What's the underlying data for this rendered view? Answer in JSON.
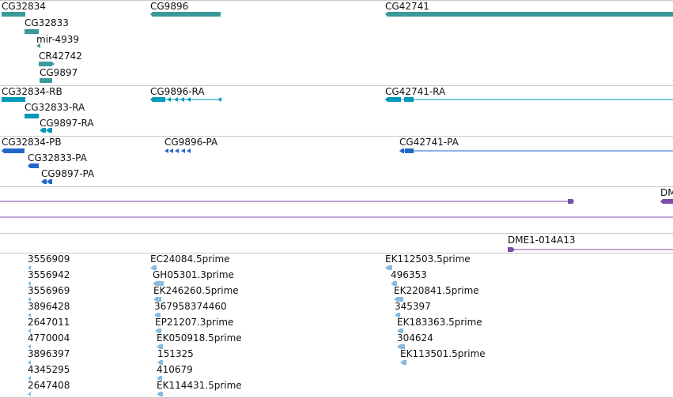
{
  "colors": {
    "gene": "#3a9a9a",
    "rna": "#0099bb",
    "protein": "#2266cc",
    "clone": "#7b4fa8",
    "est": "#88bbdd",
    "separator": "#c8c8c8"
  },
  "genes": {
    "labels": [
      "CG32834",
      "CG32833",
      "mir-4939",
      "CR42742",
      "CG9897",
      "CG9896",
      "CG42741"
    ]
  },
  "transcripts": {
    "labels": [
      "CG32834-RB",
      "CG32833-RA",
      "CG9897-RA",
      "CG9896-RA",
      "CG42741-RA"
    ]
  },
  "proteins": {
    "labels": [
      "CG32834-PB",
      "CG32833-PA",
      "CG9897-PA",
      "CG9896-PA",
      "CG42741-PA"
    ]
  },
  "clones": {
    "labels": [
      "DM",
      "DME1-014A13"
    ]
  },
  "ests": {
    "column1": [
      "3556909",
      "3556942",
      "3556969",
      "3896428",
      "2647011",
      "4770004",
      "3896397",
      "4345295",
      "2647408"
    ],
    "column2": [
      "EC24084.5prime",
      "GH05301.3prime",
      "EK246260.5prime",
      "367958374460",
      "EP21207.3prime",
      "EK050918.5prime",
      "151325",
      "410679",
      "EK114431.5prime"
    ],
    "column3": [
      "EK112503.5prime",
      "496353",
      "EK220841.5prime",
      "345397",
      "EK183363.5prime",
      "304624",
      "EK113501.5prime"
    ]
  }
}
